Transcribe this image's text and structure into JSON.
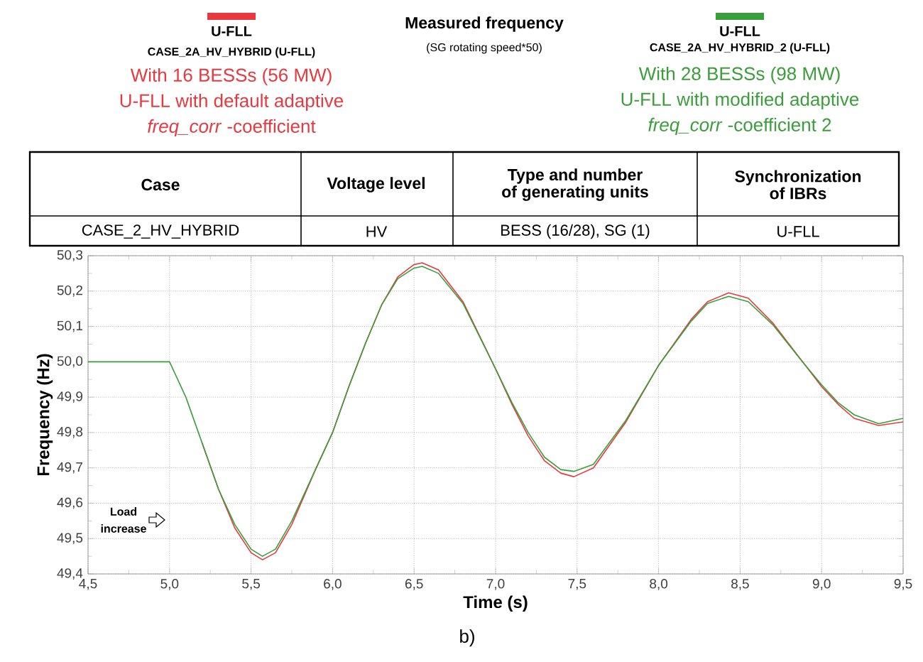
{
  "chart_data": {
    "type": "line",
    "xlabel": "Time (s)",
    "ylabel": "Frequency (Hz)",
    "xlim": [
      4.5,
      9.5
    ],
    "ylim": [
      49.4,
      50.3
    ],
    "xticks": [
      {
        "value": 4.5,
        "label": "4,5"
      },
      {
        "value": 5.0,
        "label": "5,0"
      },
      {
        "value": 5.5,
        "label": "5,5"
      },
      {
        "value": 6.0,
        "label": "6,0"
      },
      {
        "value": 6.5,
        "label": "6,5"
      },
      {
        "value": 7.0,
        "label": "7,0"
      },
      {
        "value": 7.5,
        "label": "7,5"
      },
      {
        "value": 8.0,
        "label": "8,0"
      },
      {
        "value": 8.5,
        "label": "8,5"
      },
      {
        "value": 9.0,
        "label": "9,0"
      },
      {
        "value": 9.5,
        "label": "9,5"
      }
    ],
    "yticks": [
      {
        "value": 49.4,
        "label": "49,4"
      },
      {
        "value": 49.5,
        "label": "49,5"
      },
      {
        "value": 49.6,
        "label": "49,6"
      },
      {
        "value": 49.7,
        "label": "49,7"
      },
      {
        "value": 49.8,
        "label": "49,8"
      },
      {
        "value": 49.9,
        "label": "49,9"
      },
      {
        "value": 50.0,
        "label": "50,0"
      },
      {
        "value": 50.1,
        "label": "50,1"
      },
      {
        "value": 50.2,
        "label": "50,2"
      },
      {
        "value": 50.3,
        "label": "50,3"
      }
    ],
    "grid": true,
    "legend": "top",
    "series": [
      {
        "name": "U-FLL",
        "color": "#e8393f",
        "x": [
          5.2,
          5.3,
          5.4,
          5.5,
          5.57,
          5.65,
          5.75,
          5.9,
          6.0,
          6.1,
          6.2,
          6.3,
          6.4,
          6.5,
          6.55,
          6.65,
          6.8,
          7.0,
          7.1,
          7.2,
          7.3,
          7.4,
          7.48,
          7.6,
          7.8,
          8.0,
          8.2,
          8.3,
          8.43,
          8.55,
          8.7,
          8.9,
          9.0,
          9.1,
          9.2,
          9.35,
          9.5
        ],
        "values": [
          49.77,
          49.64,
          49.53,
          49.46,
          49.44,
          49.46,
          49.54,
          49.7,
          49.8,
          49.93,
          50.05,
          50.16,
          50.24,
          50.275,
          50.28,
          50.26,
          50.17,
          49.98,
          49.88,
          49.79,
          49.72,
          49.685,
          49.675,
          49.7,
          49.83,
          49.99,
          50.12,
          50.17,
          50.195,
          50.18,
          50.11,
          49.99,
          49.93,
          49.88,
          49.84,
          49.82,
          49.83
        ]
      },
      {
        "name": "U-FLL",
        "color": "#3a9e3a",
        "x": [
          4.5,
          5.0,
          5.1,
          5.2,
          5.3,
          5.4,
          5.5,
          5.57,
          5.65,
          5.75,
          5.9,
          6.0,
          6.1,
          6.2,
          6.3,
          6.4,
          6.5,
          6.55,
          6.65,
          6.8,
          7.0,
          7.1,
          7.2,
          7.3,
          7.4,
          7.48,
          7.6,
          7.8,
          8.0,
          8.2,
          8.3,
          8.43,
          8.55,
          8.7,
          8.9,
          9.0,
          9.1,
          9.2,
          9.35,
          9.5
        ],
        "values": [
          50.0,
          50.0,
          49.9,
          49.77,
          49.64,
          49.54,
          49.47,
          49.45,
          49.47,
          49.55,
          49.7,
          49.8,
          49.93,
          50.05,
          50.16,
          50.235,
          50.265,
          50.27,
          50.25,
          50.165,
          49.98,
          49.885,
          49.8,
          49.73,
          49.695,
          49.69,
          49.71,
          49.835,
          49.99,
          50.115,
          50.165,
          50.185,
          50.17,
          50.105,
          49.99,
          49.935,
          49.885,
          49.85,
          49.825,
          49.84
        ]
      }
    ],
    "annotations": [
      "Measured frequency",
      "(SG rotating speed*50)",
      "CASE_2A_HV_HYBRID (U-FLL)",
      "With 16 BESSs (56 MW)",
      "U-FLL with default adaptive",
      "*freq_corr* -coefficient",
      "CASE_2A_HV_HYBRID_2 (U-FLL)",
      "With 28 BESSs (98 MW)",
      "U-FLL with modified adaptive",
      "*freq_corr* -coefficient 2",
      "Case",
      "Voltage level",
      "Type and number of generating units",
      "Synchronization of IBRs",
      "CASE_2_HV_HYBRID",
      "HV",
      "BESS (16/28), SG (1)",
      "U-FLL",
      "Load increase",
      "b)"
    ]
  }
}
